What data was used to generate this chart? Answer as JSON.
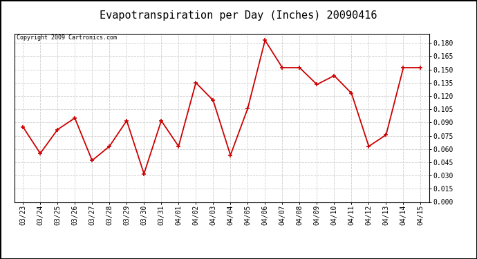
{
  "title": "Evapotranspiration per Day (Inches) 20090416",
  "copyright": "Copyright 2009 Cartronics.com",
  "labels": [
    "03/23",
    "03/24",
    "03/25",
    "03/26",
    "03/27",
    "03/28",
    "03/29",
    "03/30",
    "03/31",
    "04/01",
    "04/02",
    "04/03",
    "04/04",
    "04/05",
    "04/06",
    "04/07",
    "04/08",
    "04/09",
    "04/10",
    "04/11",
    "04/12",
    "04/13",
    "04/14",
    "04/15"
  ],
  "values": [
    0.085,
    0.055,
    0.082,
    0.095,
    0.047,
    0.063,
    0.092,
    0.032,
    0.092,
    0.063,
    0.135,
    0.115,
    0.053,
    0.106,
    0.183,
    0.152,
    0.152,
    0.133,
    0.143,
    0.123,
    0.063,
    0.076,
    0.152,
    0.152
  ],
  "line_color": "#cc0000",
  "marker": "+",
  "marker_size": 5,
  "marker_linewidth": 1.2,
  "line_width": 1.3,
  "ylim": [
    0.0,
    0.1905
  ],
  "yticks": [
    0.0,
    0.015,
    0.03,
    0.045,
    0.06,
    0.075,
    0.09,
    0.105,
    0.12,
    0.135,
    0.15,
    0.165,
    0.18
  ],
  "bg_color": "#ffffff",
  "grid_color": "#cccccc",
  "title_fontsize": 11,
  "copyright_fontsize": 6,
  "tick_fontsize": 7,
  "outer_border_color": "#000000"
}
